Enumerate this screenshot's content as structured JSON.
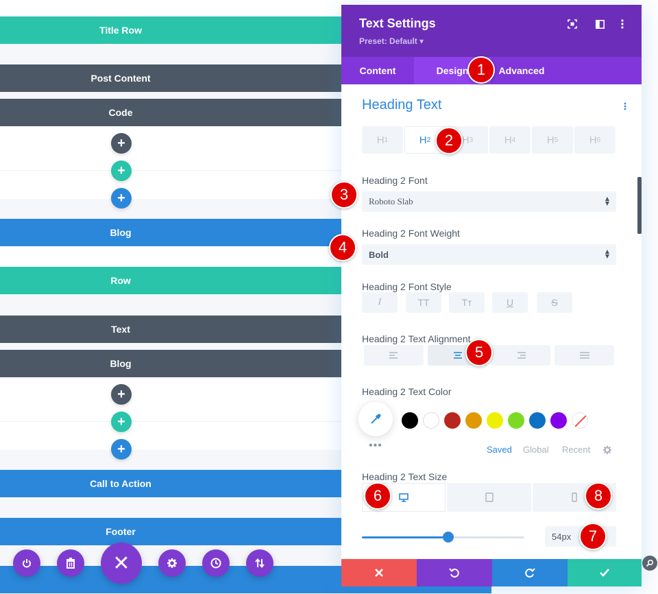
{
  "builder": {
    "rows": [
      {
        "label": "Title Row",
        "color": "#29c4a9"
      },
      {
        "label": "Post Content",
        "color": "#4c5866"
      },
      {
        "label": "Code",
        "color": "#4c5866"
      },
      {
        "label": "Blog",
        "color": "#2b87da"
      },
      {
        "label": "Row",
        "color": "#29c4a9"
      },
      {
        "label": "Text",
        "color": "#4c5866"
      },
      {
        "label": "Blog",
        "color": "#2b87da"
      },
      {
        "label": "Call to Action",
        "color": "#2b87da"
      },
      {
        "label": "Footer",
        "color": "#2b87da"
      }
    ],
    "add_buttons": [
      "+",
      "+",
      "+",
      "+",
      "+",
      "+"
    ],
    "bottom_bar": {
      "close_glyph": "✕"
    }
  },
  "panel": {
    "title": "Text Settings",
    "preset": "Preset: Default ▾",
    "tabs": [
      "Content",
      "Design",
      "Advanced"
    ],
    "active_tab": "Design",
    "section_title": "Heading Text",
    "heading_tabs": [
      {
        "h": "H",
        "n": "1"
      },
      {
        "h": "H",
        "n": "2"
      },
      {
        "h": "H",
        "n": "3"
      },
      {
        "h": "H",
        "n": "4"
      },
      {
        "h": "H",
        "n": "5"
      },
      {
        "h": "H",
        "n": "6"
      }
    ],
    "font_label": "Heading 2 Font",
    "font_value": "Roboto Slab",
    "weight_label": "Heading 2 Font Weight",
    "weight_value": "Bold",
    "style_label": "Heading 2 Font Style",
    "style_buttons": [
      "I",
      "TT",
      "Tт",
      "U",
      "S"
    ],
    "alignment_label": "Heading 2 Text Alignment",
    "color_label": "Heading 2 Text Color",
    "swatches": [
      "#000000",
      "#ffffff",
      "#b8271c",
      "#e09900",
      "#edf000",
      "#7cda24",
      "#0c71c3",
      "#8300e9"
    ],
    "palette_tabs": [
      "Saved",
      "Global",
      "Recent"
    ],
    "more": "•••",
    "size_label": "Heading 2 Text Size",
    "size_value": "54px",
    "size_fraction": 0.53
  },
  "callouts": [
    "1",
    "2",
    "3",
    "4",
    "5",
    "6",
    "7",
    "8"
  ],
  "colors": {
    "purple_dark": "#6c2eb9",
    "purple_tab": "#8036da",
    "blue": "#2b87da",
    "teal": "#29c4a9",
    "red": "#ef5555",
    "callout": "#e00000"
  }
}
